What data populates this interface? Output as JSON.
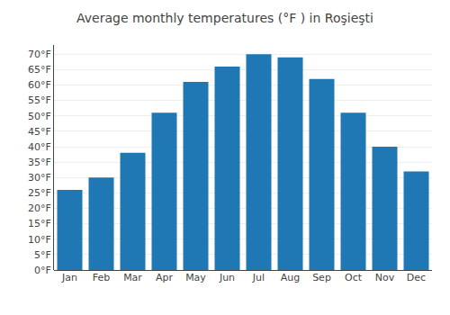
{
  "chart_data": {
    "type": "bar",
    "title": "Average monthly temperatures (°F ) in Roşieşti",
    "categories": [
      "Jan",
      "Feb",
      "Mar",
      "Apr",
      "May",
      "Jun",
      "Jul",
      "Aug",
      "Sep",
      "Oct",
      "Nov",
      "Dec"
    ],
    "values": [
      26,
      30,
      38,
      51,
      61,
      66,
      70,
      69,
      62,
      51,
      40,
      32
    ],
    "ylim": [
      0,
      73
    ],
    "yticks": [
      {
        "value": 0,
        "label": "0°F"
      },
      {
        "value": 5,
        "label": "5°F"
      },
      {
        "value": 10,
        "label": "10°F"
      },
      {
        "value": 15,
        "label": "15°F"
      },
      {
        "value": 20,
        "label": "20°F"
      },
      {
        "value": 25,
        "label": "25°F"
      },
      {
        "value": 30,
        "label": "30°F"
      },
      {
        "value": 35,
        "label": "35°F"
      },
      {
        "value": 40,
        "label": "40°F"
      },
      {
        "value": 45,
        "label": "45°F"
      },
      {
        "value": 50,
        "label": "50°F"
      },
      {
        "value": 55,
        "label": "55°F"
      },
      {
        "value": 60,
        "label": "60°F"
      },
      {
        "value": 65,
        "label": "65°F"
      },
      {
        "value": 70,
        "label": "70°F"
      }
    ],
    "grid": true
  }
}
